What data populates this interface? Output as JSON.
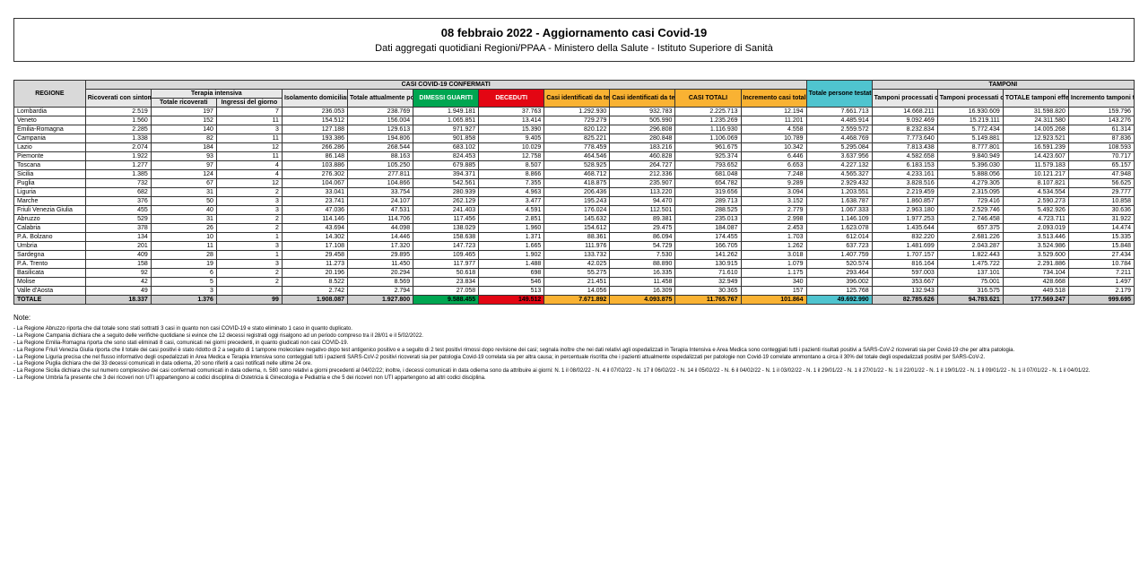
{
  "header": {
    "title": "08 febbraio 2022 - Aggiornamento casi Covid-19",
    "subtitle": "Dati aggregati quotidiani Regioni/PPAA - Ministero della Salute - Istituto Superiore di Sanità"
  },
  "columns": {
    "regione": "REGIONE",
    "group_casi": "CASI COVID-19 CONFERMATI",
    "group_tamponi": "TAMPONI",
    "ricoverati_sintomi": "Ricoverati con sintomi",
    "terapia_intensiva": "Terapia intensiva",
    "totale_ricoverati": "Totale ricoverati",
    "ingressi_giorno": "Ingressi del giorno",
    "isolamento": "Isolamento domiciliare",
    "totale_positivi": "Totale attualmente positivi",
    "dimessi": "DIMESSI GUARITI",
    "deceduti": "DECEDUTI",
    "casi_mol": "Casi identificati da test molecolare",
    "casi_ag": "Casi identificati da test antigenico rapido",
    "casi_totali": "CASI TOTALI",
    "incr_casi": "Incremento casi totali (rispetto al giorno precedente)",
    "pers_testate": "Totale persone testate",
    "tamp_mol": "Tamponi processati con test molecolare",
    "tamp_ag": "Tamponi processati con test antigenico rapido",
    "tot_tamponi": "TOTALE tamponi effettuati",
    "incr_tamponi": "Incremento tamponi totali (rispetto al giorno precedente)"
  },
  "colors": {
    "grey": "#d9d9d9",
    "green": "#00a651",
    "red": "#e30613",
    "yellow": "#f9b233",
    "cyan": "#4fc4cf"
  },
  "rows": [
    {
      "r": "Lombardia",
      "v": [
        "2.519",
        "197",
        "7",
        "236.053",
        "238.769",
        "1.949.181",
        "37.763",
        "1.292.930",
        "932.783",
        "2.225.713",
        "12.194",
        "7.661.713",
        "14.668.211",
        "16.930.609",
        "31.598.820",
        "159.796"
      ]
    },
    {
      "r": "Veneto",
      "v": [
        "1.560",
        "152",
        "11",
        "154.512",
        "156.004",
        "1.065.851",
        "13.414",
        "729.279",
        "505.990",
        "1.235.269",
        "11.201",
        "4.485.914",
        "9.092.469",
        "15.219.111",
        "24.311.580",
        "143.276"
      ]
    },
    {
      "r": "Emilia-Romagna",
      "v": [
        "2.285",
        "140",
        "3",
        "127.188",
        "129.613",
        "971.927",
        "15.390",
        "820.122",
        "296.808",
        "1.116.930",
        "4.558",
        "2.559.572",
        "8.232.834",
        "5.772.434",
        "14.005.268",
        "61.314"
      ]
    },
    {
      "r": "Campania",
      "v": [
        "1.338",
        "82",
        "11",
        "193.386",
        "194.806",
        "901.858",
        "9.405",
        "825.221",
        "280.848",
        "1.106.069",
        "10.789",
        "4.468.769",
        "7.773.640",
        "5.149.881",
        "12.923.521",
        "87.836"
      ]
    },
    {
      "r": "Lazio",
      "v": [
        "2.074",
        "184",
        "12",
        "266.286",
        "268.544",
        "683.102",
        "10.029",
        "778.459",
        "183.216",
        "961.675",
        "10.342",
        "5.295.084",
        "7.813.438",
        "8.777.801",
        "16.591.239",
        "108.593"
      ]
    },
    {
      "r": "Piemonte",
      "v": [
        "1.922",
        "93",
        "11",
        "86.148",
        "88.163",
        "824.453",
        "12.758",
        "464.546",
        "460.828",
        "925.374",
        "6.446",
        "3.637.956",
        "4.582.658",
        "9.840.949",
        "14.423.607",
        "70.717"
      ]
    },
    {
      "r": "Toscana",
      "v": [
        "1.277",
        "97",
        "4",
        "103.886",
        "105.250",
        "679.885",
        "8.507",
        "528.925",
        "264.727",
        "793.652",
        "6.653",
        "4.227.132",
        "6.183.153",
        "5.396.030",
        "11.579.183",
        "65.157"
      ]
    },
    {
      "r": "Sicilia",
      "v": [
        "1.385",
        "124",
        "4",
        "276.302",
        "277.811",
        "394.371",
        "8.866",
        "468.712",
        "212.336",
        "681.048",
        "7.248",
        "4.565.327",
        "4.233.161",
        "5.888.056",
        "10.121.217",
        "47.948"
      ]
    },
    {
      "r": "Puglia",
      "v": [
        "732",
        "67",
        "12",
        "104.067",
        "104.866",
        "542.561",
        "7.355",
        "418.875",
        "235.907",
        "654.782",
        "9.289",
        "2.929.432",
        "3.828.516",
        "4.279.305",
        "8.107.821",
        "56.625"
      ]
    },
    {
      "r": "Liguria",
      "v": [
        "682",
        "31",
        "2",
        "33.041",
        "33.754",
        "280.939",
        "4.963",
        "206.436",
        "113.220",
        "319.656",
        "3.094",
        "1.203.551",
        "2.219.459",
        "2.315.095",
        "4.534.554",
        "29.777"
      ]
    },
    {
      "r": "Marche",
      "v": [
        "376",
        "50",
        "3",
        "23.741",
        "24.107",
        "262.129",
        "3.477",
        "195.243",
        "94.470",
        "289.713",
        "3.152",
        "1.638.787",
        "1.860.857",
        "729.416",
        "2.590.273",
        "10.858"
      ]
    },
    {
      "r": "Friuli Venezia Giulia",
      "v": [
        "455",
        "40",
        "3",
        "47.036",
        "47.531",
        "241.403",
        "4.591",
        "176.024",
        "112.501",
        "288.525",
        "2.779",
        "1.067.333",
        "2.963.180",
        "2.529.746",
        "5.492.926",
        "30.636"
      ]
    },
    {
      "r": "Abruzzo",
      "v": [
        "529",
        "31",
        "2",
        "114.146",
        "114.706",
        "117.456",
        "2.851",
        "145.632",
        "89.381",
        "235.013",
        "2.998",
        "1.146.109",
        "1.977.253",
        "2.746.458",
        "4.723.711",
        "31.922"
      ]
    },
    {
      "r": "Calabria",
      "v": [
        "378",
        "26",
        "2",
        "43.694",
        "44.098",
        "138.029",
        "1.960",
        "154.612",
        "29.475",
        "184.087",
        "2.453",
        "1.623.078",
        "1.435.644",
        "657.375",
        "2.093.019",
        "14.474"
      ]
    },
    {
      "r": "P.A. Bolzano",
      "v": [
        "134",
        "10",
        "1",
        "14.302",
        "14.446",
        "158.638",
        "1.371",
        "88.361",
        "86.094",
        "174.455",
        "1.703",
        "612.014",
        "832.220",
        "2.681.226",
        "3.513.446",
        "15.335"
      ]
    },
    {
      "r": "Umbria",
      "v": [
        "201",
        "11",
        "3",
        "17.108",
        "17.320",
        "147.723",
        "1.665",
        "111.976",
        "54.729",
        "166.705",
        "1.262",
        "637.723",
        "1.481.699",
        "2.043.287",
        "3.524.986",
        "15.848"
      ]
    },
    {
      "r": "Sardegna",
      "v": [
        "409",
        "28",
        "1",
        "29.458",
        "29.895",
        "109.465",
        "1.902",
        "133.732",
        "7.530",
        "141.262",
        "3.018",
        "1.407.759",
        "1.707.157",
        "1.822.443",
        "3.529.600",
        "27.434"
      ]
    },
    {
      "r": "P.A. Trento",
      "v": [
        "158",
        "19",
        "3",
        "11.273",
        "11.450",
        "117.977",
        "1.488",
        "42.025",
        "88.890",
        "130.915",
        "1.079",
        "520.574",
        "816.164",
        "1.475.722",
        "2.291.886",
        "10.784"
      ]
    },
    {
      "r": "Basilicata",
      "v": [
        "92",
        "6",
        "2",
        "20.196",
        "20.294",
        "50.618",
        "698",
        "55.275",
        "16.335",
        "71.610",
        "1.175",
        "293.464",
        "597.003",
        "137.101",
        "734.104",
        "7.211"
      ]
    },
    {
      "r": "Molise",
      "v": [
        "42",
        "5",
        "2",
        "8.522",
        "8.569",
        "23.834",
        "546",
        "21.451",
        "11.458",
        "32.949",
        "340",
        "396.002",
        "353.667",
        "75.001",
        "428.668",
        "1.497"
      ]
    },
    {
      "r": "Valle d'Aosta",
      "v": [
        "49",
        "3",
        "",
        "2.742",
        "2.794",
        "27.058",
        "513",
        "14.056",
        "16.309",
        "30.365",
        "157",
        "125.768",
        "132.943",
        "316.575",
        "449.518",
        "2.179"
      ]
    }
  ],
  "total": {
    "r": "TOTALE",
    "v": [
      "18.337",
      "1.376",
      "99",
      "1.908.087",
      "1.927.800",
      "9.588.455",
      "149.512",
      "7.671.892",
      "4.093.875",
      "11.765.767",
      "101.864",
      "49.692.990",
      "82.785.626",
      "94.783.621",
      "177.569.247",
      "999.695"
    ]
  },
  "notes_title": "Note:",
  "notes": [
    "La Regione Abruzzo riporta che dal totale sono stati sottratti 3 casi in quanto non casi COVID-19 e stato eliminato 1 caso in quanto duplicato.",
    "La Regione Campania dichiara che a seguito delle verifiche quotidiane si evince che 12 decessi registrati oggi risalgono ad un periodo compreso tra il 28/01 e il 5/02/2022.",
    "La Regione Emilia-Romagna riporta che sono stati eliminati 8 casi, comunicati nei giorni precedenti, in quanto giudicati non casi COVID-19.",
    "La Regione Friuli Venezia Giulia riporta che il totale dei casi positivi è stato ridotto di 2 a seguito di 1 tampone molecolare negativo dopo test antigenico positivo e a seguito di 2 test positivi rimossi dopo revisione dei casi; segnala inoltre che nei dati relativi agli ospedalizzati in Terapia Intensiva e Area Medica sono conteggiati tutti i pazienti risultati positivi a SARS-CoV-2 ricoverati sia per Covid-19 che per altra patologia.",
    "La Regione Liguria precisa che nel flusso informativo degli ospedalizzati in Area Medica e Terapia Intensiva sono conteggiati tutti i pazienti SARS-CoV-2 positivi ricoverati sia per patologia Covid-19 correlata sia per altra causa; in percentuale riscritta che i pazienti attualmente ospedalizzati per patologie non Covid-19 correlate ammontano a circa il 30% del totale degli ospedalizzati positivi per SARS-CoV-2.",
    "La Regione Puglia dichiara che dei 33 decessi comunicati in data odierna, 20 sono riferiti a casi notificati nelle ultime 24 ore.",
    "La Regione Sicilia dichiara che sul numero complessivo dei casi confermati comunicati in data odierna, n. 580 sono relativi a giorni precedenti al 04/02/22; inoltre, i decessi comunicati in data odierna sono da attribuire ai giorni: N. 1 il 08/02/22 - N. 4 il 07/02/22 - N. 17 il 06/02/22 - N. 14 il 05/02/22 - N. 6 il 04/02/22 - N. 1 il 03/02/22 - N. 1 il 29/01/22 - N. 1 il 27/01/22 - N. 1 il 22/01/22 - N. 1 il 19/01/22 - N. 1 il 09/01/22 - N. 1 il 07/01/22 - N. 1 il 04/01/22.",
    "La Regione Umbria fa presente che 3 dei ricoveri non UTI appartengono ai codici disciplina di Ostetricia & Ginecologia e Pediatria e che 5 dei ricoveri non UTI appartengono ad altri codici disciplina."
  ]
}
